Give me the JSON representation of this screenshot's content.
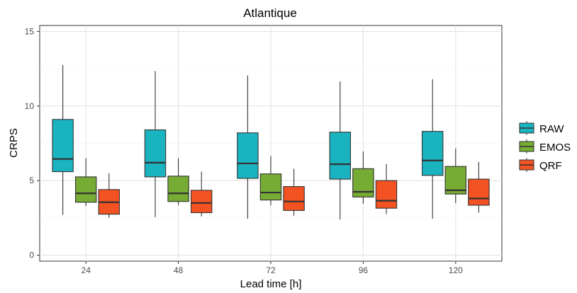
{
  "chart_data": {
    "type": "boxplot",
    "title": "Atlantique",
    "xlabel": "Lead time [h]",
    "ylabel": "CRPS",
    "ylim": [
      -0.4,
      15.4
    ],
    "yticks": [
      0,
      5,
      10,
      15
    ],
    "grid": true,
    "legend_position": "right",
    "categories": [
      "24",
      "48",
      "72",
      "96",
      "120"
    ],
    "series": [
      {
        "name": "RAW",
        "color": "#1ab3c0",
        "boxes": [
          {
            "min": 2.7,
            "q1": 5.6,
            "median": 6.45,
            "q3": 9.1,
            "max": 12.75
          },
          {
            "min": 2.55,
            "q1": 5.25,
            "median": 6.2,
            "q3": 8.4,
            "max": 12.35
          },
          {
            "min": 2.45,
            "q1": 5.15,
            "median": 6.15,
            "q3": 8.2,
            "max": 12.05
          },
          {
            "min": 2.4,
            "q1": 5.1,
            "median": 6.1,
            "q3": 8.25,
            "max": 11.65
          },
          {
            "min": 2.45,
            "q1": 5.35,
            "median": 6.35,
            "q3": 8.3,
            "max": 11.8
          }
        ]
      },
      {
        "name": "EMOS",
        "color": "#76ab34",
        "boxes": [
          {
            "min": 3.3,
            "q1": 3.55,
            "median": 4.15,
            "q3": 5.25,
            "max": 6.5
          },
          {
            "min": 3.35,
            "q1": 3.6,
            "median": 4.15,
            "q3": 5.3,
            "max": 6.5
          },
          {
            "min": 3.35,
            "q1": 3.7,
            "median": 4.2,
            "q3": 5.45,
            "max": 6.65
          },
          {
            "min": 3.45,
            "q1": 3.9,
            "median": 4.25,
            "q3": 5.8,
            "max": 6.95
          },
          {
            "min": 3.5,
            "q1": 4.1,
            "median": 4.35,
            "q3": 5.95,
            "max": 7.15
          }
        ]
      },
      {
        "name": "QRF",
        "color": "#f35222",
        "boxes": [
          {
            "min": 2.5,
            "q1": 2.75,
            "median": 3.55,
            "q3": 4.4,
            "max": 5.5
          },
          {
            "min": 2.6,
            "q1": 2.85,
            "median": 3.5,
            "q3": 4.35,
            "max": 5.6
          },
          {
            "min": 2.65,
            "q1": 3.0,
            "median": 3.6,
            "q3": 4.6,
            "max": 5.8
          },
          {
            "min": 2.75,
            "q1": 3.15,
            "median": 3.65,
            "q3": 5.0,
            "max": 6.1
          },
          {
            "min": 2.85,
            "q1": 3.35,
            "median": 3.8,
            "q3": 5.1,
            "max": 6.25
          }
        ]
      }
    ]
  }
}
